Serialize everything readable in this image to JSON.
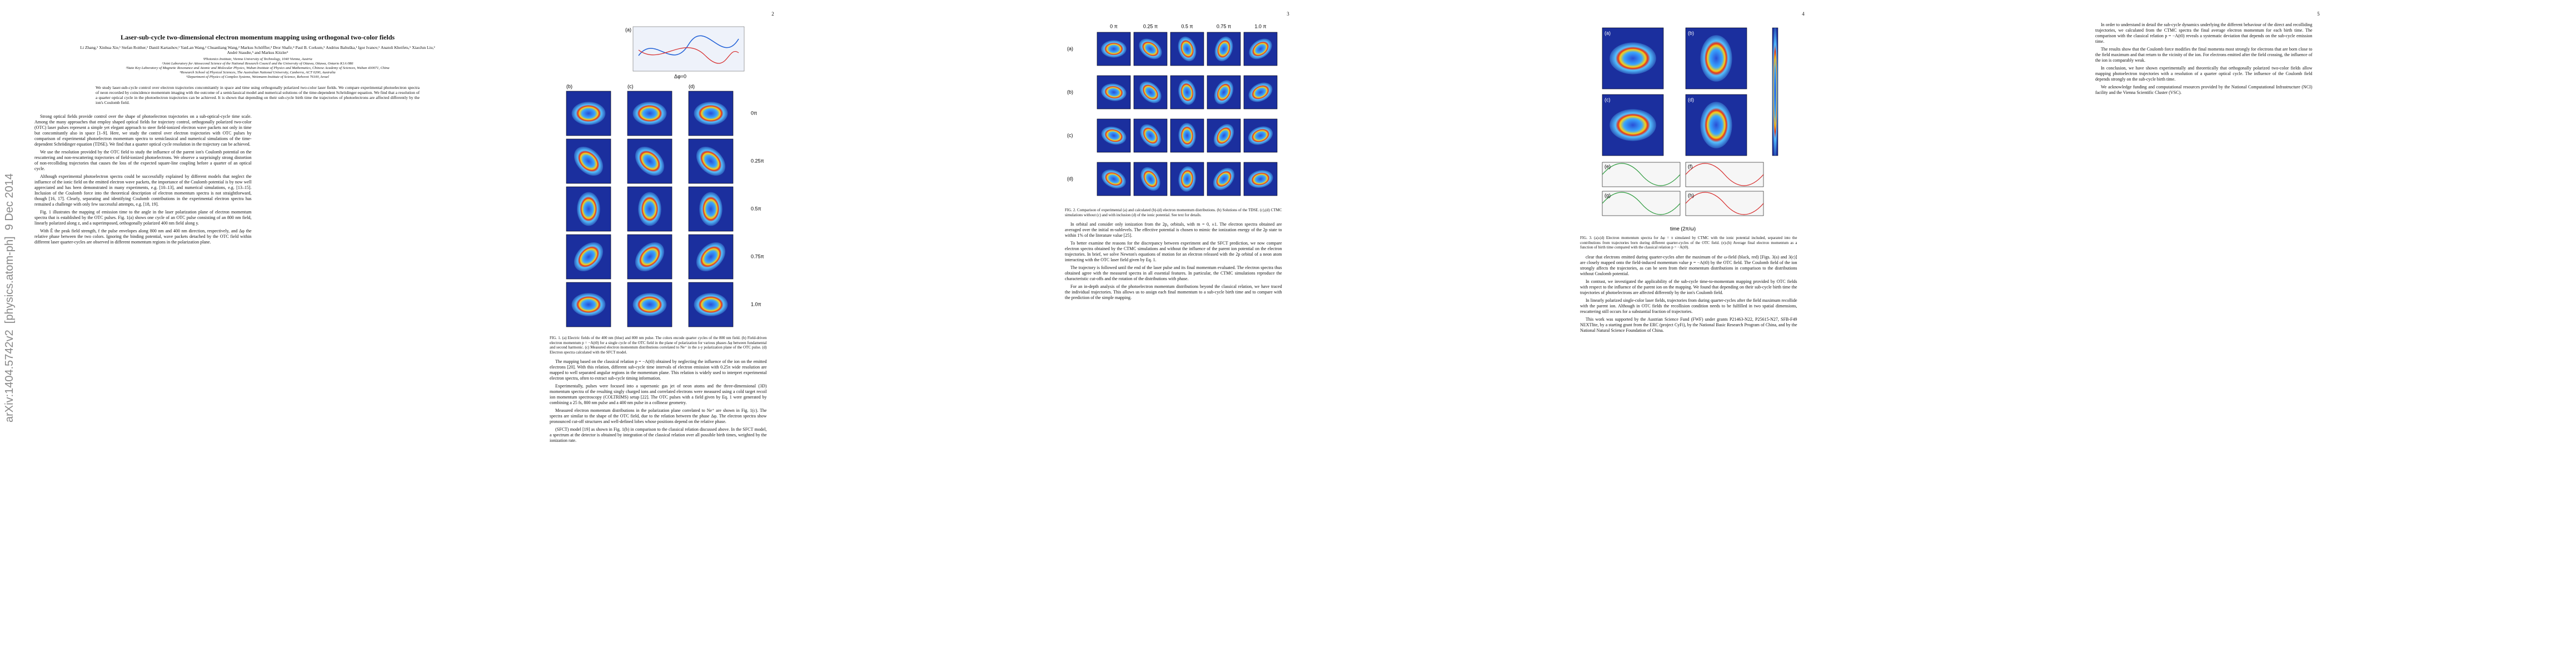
{
  "header": {
    "arxiv_stamp": "arXiv:1404.5742v2  [physics.atom-ph]  9 Dec 2014"
  },
  "page_numbers": [
    "2",
    "3",
    "4",
    "5"
  ],
  "title": "Laser-sub-cycle two-dimensional electron momentum mapping using orthogonal two-color fields",
  "authors": "Li Zhang,¹ Xinhua Xie,¹ Stefan Roither,¹ Daniil Kartashov,¹ YanLan Wang,² Chuanliang Wang,² Markus Schöffler,³ Dror Shafir,⁴ Paul B. Corkum,⁵ Andrius Baltuška,¹ Igor Ivanov,⁶ Anatoli Kheifets,⁶ XiaoJun Liu,² André Staudte,⁵ and Markus Kitzler¹",
  "affiliations": [
    "¹Photonics Institute, Vienna University of Technology, 1040 Vienna, Austria",
    "²Joint Laboratory for Attosecond Science of the National Research Council and the University of Ottawa, Ottawa, Ontario K1A 0R6",
    "³State Key Laboratory of Magnetic Resonance and Atomic and Molecular Physics, Wuhan Institute of Physics and Mathematics, Chinese Academy of Sciences, Wuhan 430071, China",
    "⁴Research School of Physical Sciences, The Australian National University, Canberra, ACT 0200, Australia",
    "⁵Department of Physics of Complex Systems, Weizmann Institute of Science, Rehovot 76100, Israel"
  ],
  "abstract": "We study laser-sub-cycle control over electron trajectories concomitantly in space and time using orthogonally polarized two-color laser fields. We compare experimental photoelectron spectra of neon recorded by coincidence momentum imaging with the outcome of a semiclassical model and numerical solutions of the time-dependent Schrödinger equation. We find that a resolution of a quarter optical cycle in the photoelectron trajectories can be achieved. It is shown that depending on their sub-cycle birth time the trajectories of photoelectrons are affected differently by the ion's Coulomb field.",
  "body": [
    [
      "Strong optical fields provide control over the shape of photoelectron trajectories on a sub-optical-cycle time scale. Among the many approaches that employ shaped optical fields for trajectory control, orthogonally polarized two-color (OTC) laser pulses represent a simple yet elegant approach to steer field-ionized electron wave packets not only in time but concomitantly also in space [1–9]. Here, we study the control over electron trajectories with OTC pulses by comparison of experimental photoelectron momentum spectra to semiclassical and numerical simulations of the time-dependent Schrödinger equation (TDSE). We find that a quarter optical cycle resolution in the trajectory can be achieved.",
      "We use the resolution provided by the OTC field to study the influence of the parent ion's Coulomb potential on the rescattering and non-rescattering trajectories of field-ionized photoelectrons. We observe a surprisingly strong distortion of non-recolliding trajectories that causes the loss of the expected square-line coupling before a quarter of an optical cycle.",
      "Although experimental photoelectron spectra could be successfully explained by different models that neglect the influence of the ionic field on the emitted electron wave packets, the importance of the Coulomb potential is by now well appreciated and has been demonstrated in many experiments, e.g. [10–13], and numerical simulations, e.g. [13–15]. Inclusion of the Coulomb force into the theoretical description of electron momentum spectra is not straightforward, though [16, 17]. Clearly, separating and identifying Coulomb contributions in the experimental electron spectra has remained a challenge with only few successful attempts, e.g. [18, 19].",
      "Fig. 1 illustrates the mapping of emission time to the angle in the laser polarization plane of electron momentum spectra that is established by the OTC pulses. Fig. 1(a) shows one cycle of an OTC pulse consisting of an 800 nm field, linearly polarized along z, and a superimposed, orthogonally polarized 400 nm field along y.",
      "With Ê the peak field strength, f the pulse envelopes along 800 nm and 400 nm direction, respectively, and Δφ the relative phase between the two colors. Ignoring the binding potential, wave packets detached by the OTC field within different laser quarter-cycles are observed in different momentum regions in the polarization plane."
    ],
    [
      "The mapping based on the classical relation p = −A(t0) obtained by neglecting the influence of the ion on the emitted electrons [20]. With this relation, different sub-cycle time intervals of electron emission with 0.25π wide resolution are mapped to well separated angular regions in the momentum plane. This relation is widely used to interpret experimental electron spectra, often to extract sub-cycle timing information.",
      "Experimentally, pulses were focused into a supersonic gas jet of neon atoms and the three-dimensional (3D) momentum spectra of the resulting singly charged ions and correlated electrons were measured using a cold target recoil ion momentum spectroscopy (COLTRIMS) setup [22]. The OTC pulses with a field given by Eq. 1 were generated by combining a 25 fs, 800 nm pulse and a 400 nm pulse in a collinear geometry.",
      "Measured electron momentum distributions in the polarization plane correlated to Ne⁺ are shown in Fig. 1(c). The spectra are similar to the shape of the OTC field, due to the relation between the phase Δφ. The electron spectra show pronounced cut-off structures and well-defined lobes whose positions depend on the relative phase.",
      "(SFCT) model [19] as shown in Fig. 1(b) in comparison to the classical relation discussed above. In the SFCT model, a spectrum at the detector is obtained by integration of the classical relation over all possible birth times, weighted by the ionization rate."
    ],
    [
      "In orbital and consider only ionization from the 2p₀ orbitals, with m = 0, ±1. The electron spectra obtained are averaged over the initial m-sublevels. The effective potential is chosen to mimic the ionization energy of the 2p state to within 1% of the literature value [25].",
      "To better examine the reasons for the discrepancy between experiment and the SFCT prediction, we now compare electron spectra obtained by the CTMC simulations and without the influence of the parent ion potential on the electron trajectories. In brief, we solve Newton's equations of motion for an electron released with the 2p orbital of a neon atom interacting with the OTC laser field given by Eq. 1.",
      "The trajectory is followed until the end of the laser pulse and its final momentum evaluated. The electron spectra thus obtained agree with the measured spectra in all essential features. In particular, the CTMC simulations reproduce the characteristic cut-offs and the rotation of the distributions with phase.",
      "For an in-depth analysis of the photoelectron momentum distributions beyond the classical relation, we have traced the individual trajectories. This allows us to assign each final momentum to a sub-cycle birth time and to compare with the prediction of the simple mapping."
    ],
    [
      "clear that electrons emitted during quarter-cycles after the maximum of the ω-field (black, red) [Figs. 3(a) and 3(c)] are closely mapped onto the field-induced momentum value p = −A(t0) by the OTC field. The Coulomb field of the ion strongly affects the trajectories, as can be seen from their momentum distributions in comparison to the distributions without Coulomb potential.",
      "In contrast, we investigated the applicability of the sub-cycle time-to-momentum mapping provided by OTC fields with respect to the influence of the parent ion on the mapping. We found that depending on their sub-cycle birth time the trajectories of photoelectrons are affected differently by the ion's Coulomb field.",
      "In linearly polarized single-color laser fields, trajectories from during quarter-cycles after the field maximum recollide with the parent ion. Although in OTC fields the recollision condition needs to be fulfilled in two spatial dimensions, rescattering still occurs for a substantial fraction of trajectories.",
      "This work was supported by the Austrian Science Fund (FWF) under grants P21463-N22, P25615-N27, SFB-F49 NEXTlite, by a starting grant from the ERC (project CyFi), by the National Basic Research Program of China, and by the National Natural Science Foundation of China."
    ],
    [
      "In order to understand in detail the sub-cycle dynamics underlying the different behaviour of the direct and recolliding trajectories, we calculated from the CTMC spectra the final average electron momentum for each birth time. The comparison with the classical relation p = −A(t0) reveals a systematic deviation that depends on the sub-cycle emission time.",
      "The results show that the Coulomb force modifies the final momenta most strongly for electrons that are born close to the field maximum and that return to the vicinity of the ion. For electrons emitted after the field crossing, the influence of the ion is comparably weak.",
      "In conclusion, we have shown experimentally and theoretically that orthogonally polarized two-color fields allow mapping photoelectron trajectories with a resolution of a quarter optical cycle. The influence of the Coulomb field depends strongly on the sub-cycle birth time.",
      "We acknowledge funding and computational resources provided by the National Computational Infrastructure (NCI) facility and the Vienna Scientific Cluster (VSC)."
    ]
  ],
  "figure1": {
    "panels": [
      "(a)",
      "(b)",
      "(c)",
      "(d)"
    ],
    "phase_label": "Δφ=0",
    "phases": [
      "0π",
      "0.25π",
      "0.5π",
      "0.75π",
      "1.0π"
    ],
    "caption": "FIG. 1. (a) Electric fields of the 400 nm (blue) and 800 nm pulse. The colors encode quarter cycles of the 800 nm field. (b) Field-driven electron momentum p = −A(t0) for a single cycle of the OTC field in the plane of polarization for various phases Δφ between fundamental and second harmonic. (c) Measured electron momentum distributions correlated to Ne⁺ in the z-y polarization plane of the OTC pulse. (d) Electron spectra calculated with the SFCT model."
  },
  "figure2": {
    "phases": [
      "0 π",
      "0.25 π",
      "0.5 π",
      "0.75 π",
      "1.0 π"
    ],
    "rows": [
      "(a)",
      "(b)",
      "(c)",
      "(d)"
    ],
    "caption": "FIG. 2. Comparison of experimental (a) and calculated (b)-(d) electron momentum distributions. (b) Solutions of the TDSE. (c),(d) CTMC simulations without (c) and with inclusion (d) of the ionic potential. See text for details."
  },
  "figure3": {
    "panels": [
      "(a)",
      "(b)",
      "(c)",
      "(d)",
      "(e)",
      "(f)",
      "(g)",
      "(h)"
    ],
    "time_axis": "time (2π/ω)",
    "caption": "FIG. 3. (a)-(d) Electron momentum spectra for Δφ = π simulated by CTMC with the ionic potential included, separated into the contributions from trajectories born during different quarter-cycles of the OTC field. (e)-(h) Average final electron momentum as a function of birth time compared with the classical relation p = −A(t0)."
  }
}
